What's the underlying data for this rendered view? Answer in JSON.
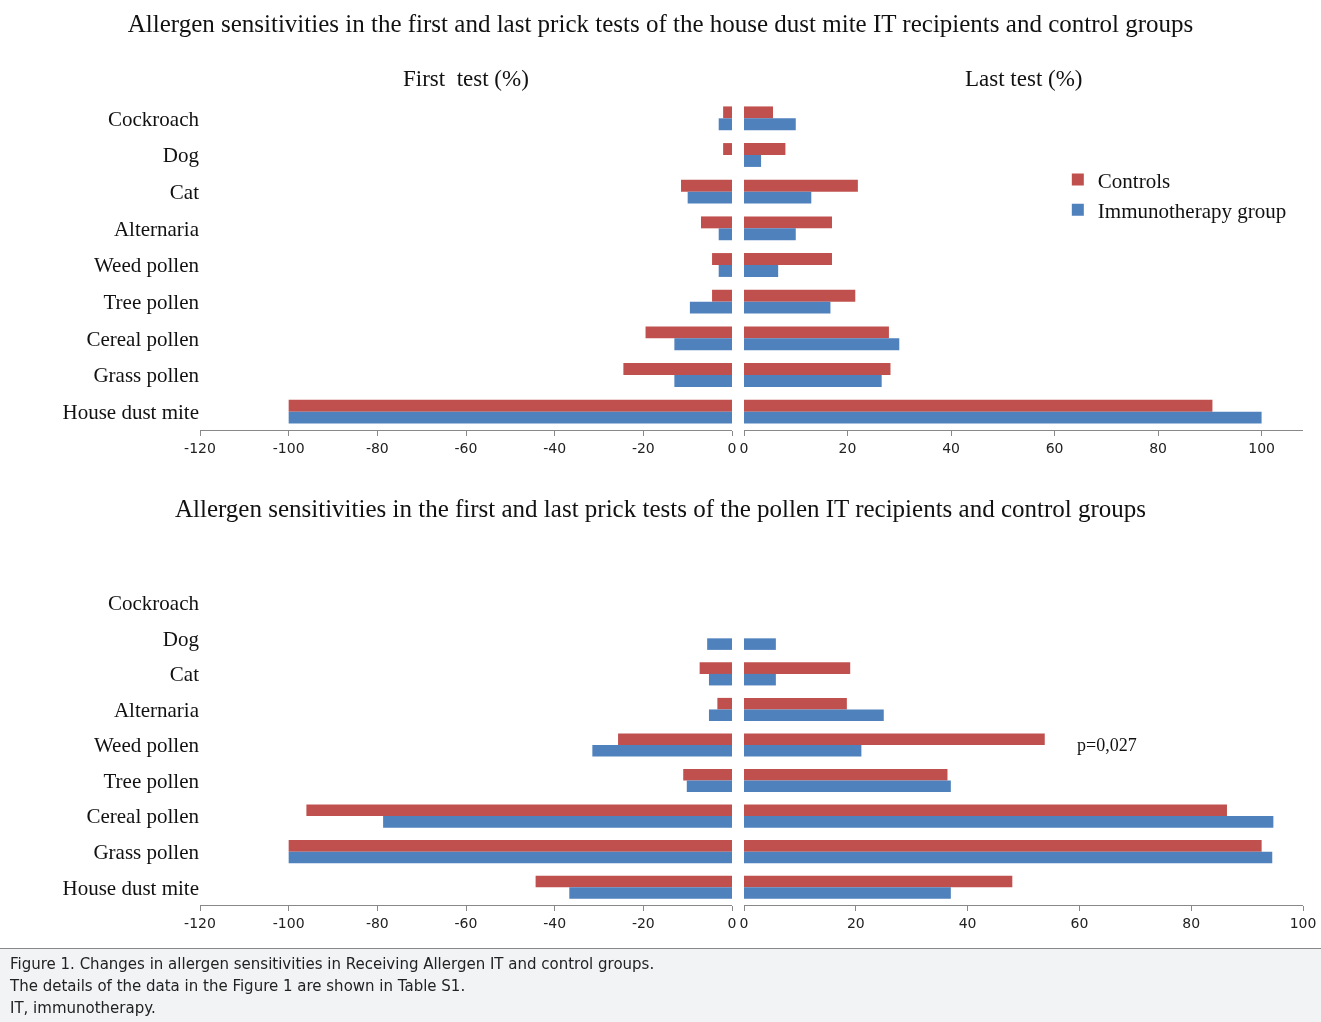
{
  "chart_data": [
    {
      "type": "bar",
      "orientation": "horizontal",
      "title": "Allergen sensitivities  in the first and last prick tests of the house dust mite IT recipients and control groups",
      "subtitle": "First  test (%)",
      "categories": [
        "Cockroach",
        "Dog",
        "Cat",
        "Alternaria",
        "Weed pollen",
        "Tree pollen",
        "Cereal pollen",
        "Grass pollen",
        "House dust mite"
      ],
      "series": [
        {
          "color": "#c0504d",
          "values": [
            -2,
            -2,
            -11.5,
            -7,
            -4.5,
            -4.5,
            -19.5,
            -24.5,
            -100
          ]
        },
        {
          "color": "#4f81bd",
          "values": [
            -3,
            null,
            -10,
            -3,
            -3,
            -9.5,
            -13,
            -13,
            -100
          ]
        }
      ],
      "xlim": [
        -120,
        0
      ],
      "xticks": [
        -120,
        -100,
        -80,
        -60,
        -40,
        -20,
        0
      ],
      "grid": false
    },
    {
      "type": "bar",
      "orientation": "horizontal",
      "subtitle": "Last test (%)",
      "categories": [
        "Cockroach",
        "Dog",
        "Cat",
        "Alternaria",
        "Weed pollen",
        "Tree pollen",
        "Cereal pollen",
        "Grass pollen",
        "House dust mite"
      ],
      "tick_labels": "x",
      "series": [
        {
          "name": "Controls",
          "color": "#c0504d",
          "values": [
            5.6,
            8,
            22,
            17,
            17,
            21.5,
            28,
            28.3,
            90.5
          ]
        },
        {
          "name": "Immunotherapy group",
          "color": "#4f81bd",
          "values": [
            10,
            3.3,
            13,
            10,
            6.6,
            16.7,
            30,
            26.6,
            100
          ]
        }
      ],
      "xlim": [
        0,
        108
      ],
      "xticks": [
        0,
        20,
        40,
        60,
        80,
        100
      ],
      "grid": false,
      "legend": "top right"
    },
    {
      "type": "bar",
      "orientation": "horizontal",
      "title": "Allergen sensitivities  in the first and last prick tests of the pollen IT recipients and control groups",
      "categories": [
        "Cockroach",
        "Dog",
        "Cat",
        "Alternaria",
        "Weed pollen",
        "Tree pollen",
        "Cereal pollen",
        "Grass pollen",
        "House dust mite"
      ],
      "series": [
        {
          "color": "#c0504d",
          "values": [
            null,
            null,
            -7.3,
            -3.3,
            -25.7,
            -11,
            -96,
            -100,
            -44.3
          ]
        },
        {
          "color": "#4f81bd",
          "values": [
            null,
            -5.6,
            -5.2,
            -5.2,
            -31.5,
            -10.2,
            -78.7,
            -100,
            -36.7
          ]
        }
      ],
      "xlim": [
        -120,
        0
      ],
      "xticks": [
        -120,
        -100,
        -80,
        -60,
        -40,
        -20,
        0
      ],
      "grid": false
    },
    {
      "type": "bar",
      "orientation": "horizontal",
      "categories": [
        "Cockroach",
        "Dog",
        "Cat",
        "Alternaria",
        "Weed pollen",
        "Tree pollen",
        "Cereal pollen",
        "Grass pollen",
        "House dust mite"
      ],
      "tick_labels": "x",
      "series": [
        {
          "color": "#c0504d",
          "values": [
            null,
            null,
            19,
            18.4,
            53.8,
            36.4,
            86.4,
            92.6,
            48
          ]
        },
        {
          "color": "#4f81bd",
          "values": [
            null,
            5.7,
            5.7,
            25,
            21,
            37,
            94.7,
            94.5,
            37
          ]
        }
      ],
      "xlim": [
        0,
        100
      ],
      "xticks": [
        0,
        20,
        40,
        60,
        80,
        100
      ],
      "grid": false,
      "annotations": [
        {
          "text": "p=0,027",
          "x": 53.8,
          "y": "Weed pollen"
        },
        "Figure 1.  Changes in allergen sensitivities in Receiving Allergen IT and control groups.",
        "The details of the data in the Figure 1 are shown in Table S1.",
        "IT, immunotherapy."
      ]
    }
  ]
}
